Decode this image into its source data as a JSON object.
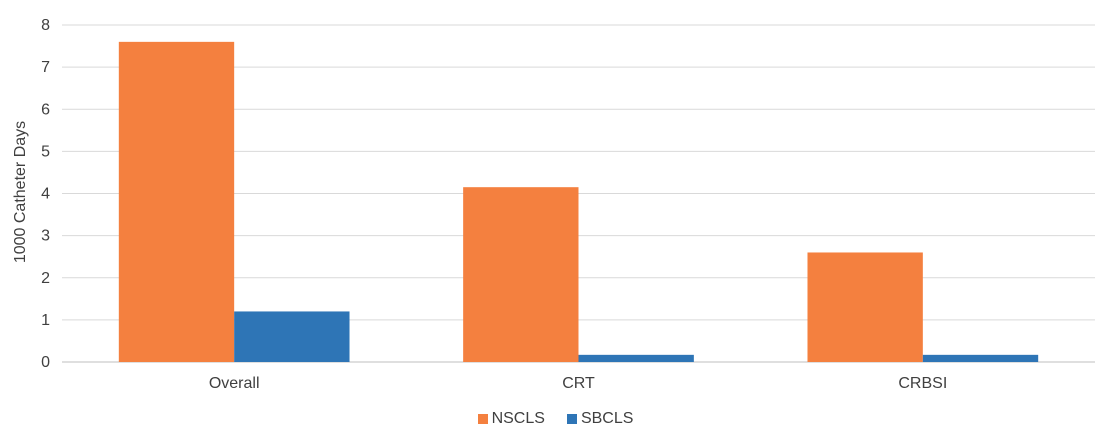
{
  "chart_data": {
    "type": "bar",
    "title": "",
    "xlabel": "",
    "ylabel": "1000 Catheter Days",
    "categories": [
      "Overall",
      "CRT",
      "CRBSI"
    ],
    "series": [
      {
        "name": "NSCLS",
        "color": "#F4803F",
        "values": [
          7.6,
          4.15,
          2.6
        ]
      },
      {
        "name": "SBCLS",
        "color": "#2E75B6",
        "values": [
          1.2,
          0.17,
          0.17
        ]
      }
    ],
    "ylim": [
      0,
      8
    ],
    "yticks": [
      0,
      1,
      2,
      3,
      4,
      5,
      6,
      7,
      8
    ],
    "grid": true,
    "legend_position": "bottom"
  }
}
